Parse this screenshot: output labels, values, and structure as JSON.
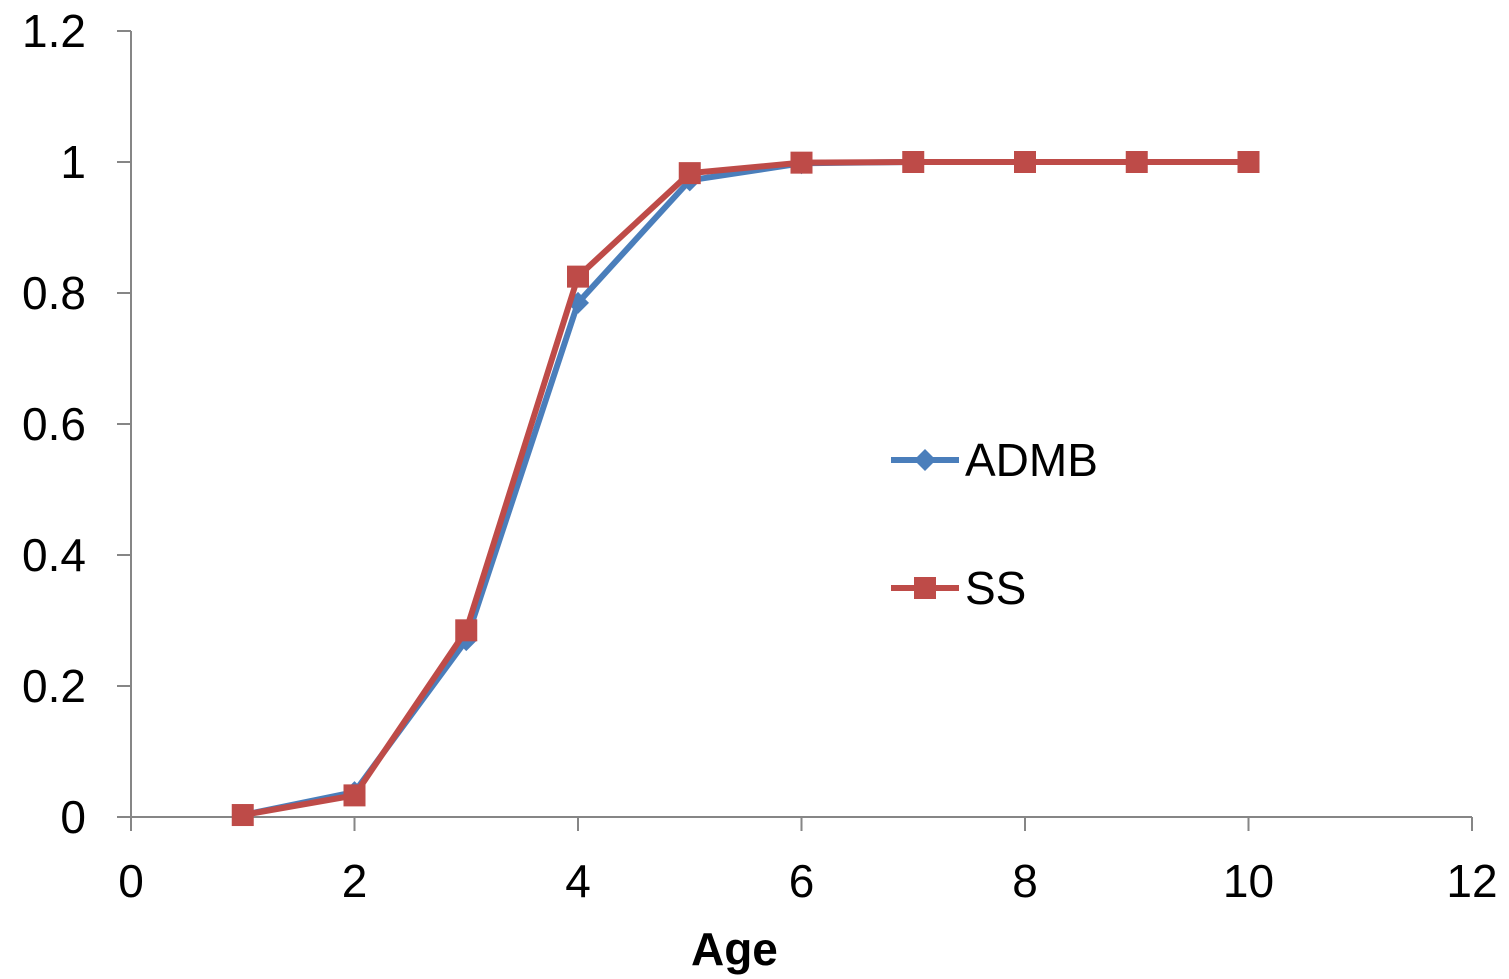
{
  "chart_data": {
    "type": "line",
    "title": "",
    "xlabel": "Age",
    "ylabel": "",
    "xlim": [
      0,
      12
    ],
    "ylim": [
      0,
      1.2
    ],
    "xticks": [
      0,
      2,
      4,
      6,
      8,
      10,
      12
    ],
    "yticks": [
      0,
      0.2,
      0.4,
      0.6,
      0.8,
      1,
      1.2
    ],
    "xtick_labels": [
      "0",
      "2",
      "4",
      "6",
      "8",
      "10",
      "12"
    ],
    "ytick_labels": [
      "0",
      "0.2",
      "0.4",
      "0.6",
      "0.8",
      "1",
      "1.2"
    ],
    "grid": false,
    "legend_position": "right",
    "x": [
      1,
      2,
      3,
      4,
      5,
      6,
      7,
      8,
      9,
      10
    ],
    "series": [
      {
        "name": "ADMB",
        "color": "#4A7EBB",
        "marker": "diamond",
        "values": [
          0.003,
          0.038,
          0.27,
          0.785,
          0.972,
          0.998,
          1.0,
          1.0,
          1.0,
          1.0
        ]
      },
      {
        "name": "SS",
        "color": "#BE4B48",
        "marker": "square",
        "values": [
          0.003,
          0.033,
          0.285,
          0.825,
          0.983,
          0.999,
          1.0,
          1.0,
          1.0,
          1.0
        ]
      }
    ]
  }
}
